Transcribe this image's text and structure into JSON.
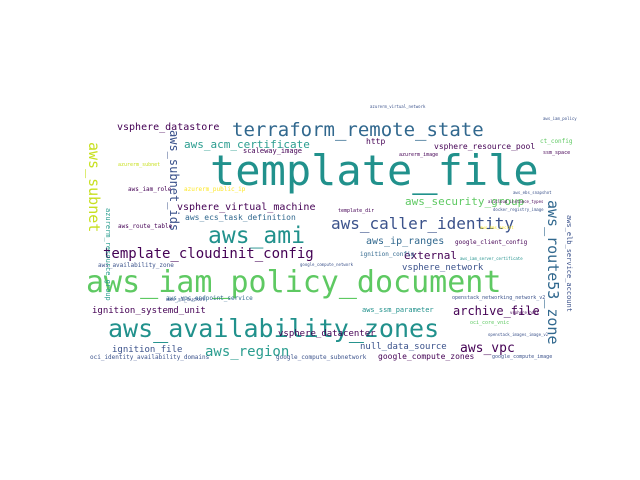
{
  "palette": {
    "dark_purple": "#440154",
    "indigo": "#3b528b",
    "blue": "#31688e",
    "teal": "#21918c",
    "green_teal": "#2a9d8f",
    "green": "#5ec962",
    "yellow": "#fde725",
    "pale_yellow": "#c8e020"
  },
  "words": [
    {
      "id": "template-file",
      "text": "template_file",
      "color": "#21918c"
    },
    {
      "id": "aws-iam-policy-document",
      "text": "aws_iam_policy_document",
      "color": "#5ec962"
    },
    {
      "id": "aws-availability-zones",
      "text": "aws_availability_zones",
      "color": "#21918c"
    },
    {
      "id": "terraform-remote-state",
      "text": "terraform_remote_state",
      "color": "#31688e"
    },
    {
      "id": "aws-ami",
      "text": "aws_ami",
      "color": "#21918c"
    },
    {
      "id": "aws-caller-identity",
      "text": "aws_caller_identity",
      "color": "#3b528b"
    },
    {
      "id": "template-cloudinit-config",
      "text": "template_cloudinit_config",
      "color": "#440154"
    },
    {
      "id": "aws-route53-zone",
      "text": "aws_route53_zone",
      "color": "#31688e"
    },
    {
      "id": "aws-subnet",
      "text": "aws_subnet",
      "color": "#c8e020"
    },
    {
      "id": "aws-subnet-ids",
      "text": "aws_subnet_ids",
      "color": "#3b528b"
    },
    {
      "id": "aws-acm-certificate",
      "text": "aws_acm_certificate",
      "color": "#2a9d8f"
    },
    {
      "id": "vsphere-datastore",
      "text": "vsphere_datastore",
      "color": "#440154"
    },
    {
      "id": "vsphere-virtual-machine",
      "text": "vsphere_virtual_machine",
      "color": "#440154"
    },
    {
      "id": "aws-region",
      "text": "aws_region",
      "color": "#2a9d8f"
    },
    {
      "id": "aws-vpc",
      "text": "aws_vpc",
      "color": "#440154"
    },
    {
      "id": "aws-security-group",
      "text": "aws_security_group",
      "color": "#5ec962"
    },
    {
      "id": "archive-file",
      "text": "archive_file",
      "color": "#440154"
    },
    {
      "id": "external",
      "text": "external",
      "color": "#440154"
    },
    {
      "id": "aws-ip-ranges",
      "text": "aws_ip_ranges",
      "color": "#31688e"
    },
    {
      "id": "vsphere-network",
      "text": "vsphere_network",
      "color": "#3b528b"
    },
    {
      "id": "ignition-systemd-unit",
      "text": "ignition_systemd_unit",
      "color": "#440154"
    },
    {
      "id": "vsphere-datacenter",
      "text": "vsphere_datacenter",
      "color": "#440154"
    },
    {
      "id": "null-data-source",
      "text": "null_data_source",
      "color": "#3b528b"
    },
    {
      "id": "ignition-file",
      "text": "ignition_file",
      "color": "#3b528b"
    },
    {
      "id": "google-compute-zones",
      "text": "google_compute_zones",
      "color": "#440154"
    },
    {
      "id": "aws-ssm-parameter",
      "text": "aws_ssm_parameter",
      "color": "#21918c"
    },
    {
      "id": "vsphere-resource-pool",
      "text": "vsphere_resource_pool",
      "color": "#440154"
    },
    {
      "id": "aws-ecs-task-definition",
      "text": "aws_ecs_task_definition",
      "color": "#31688e"
    },
    {
      "id": "aws-vpc-endpoint-service",
      "text": "aws_vpc_endpoint_service",
      "color": "#31688e"
    },
    {
      "id": "aws-availability-zone",
      "text": "aws_availability_zone",
      "color": "#3b528b"
    },
    {
      "id": "aws-route-table",
      "text": "aws_route_table",
      "color": "#440154"
    },
    {
      "id": "aws-iam-role",
      "text": "aws_iam_role",
      "color": "#440154"
    },
    {
      "id": "scaleway-image",
      "text": "scaleway_image",
      "color": "#440154"
    },
    {
      "id": "http",
      "text": "http",
      "color": "#440154"
    },
    {
      "id": "azurerm-subnet",
      "text": "azurerm_subnet",
      "color": "#c8e020"
    },
    {
      "id": "azurerm-resource-group",
      "text": "azurerm_resource_group",
      "color": "#2a9d8f"
    },
    {
      "id": "aws-elb-service-account",
      "text": "aws_elb_service_account",
      "color": "#3b528b"
    },
    {
      "id": "google-client-config",
      "text": "google_client_config",
      "color": "#440154"
    },
    {
      "id": "ignition-config",
      "text": "ignition_config",
      "color": "#31688e"
    },
    {
      "id": "openstack-networking-network-v2",
      "text": "openstack_networking_network_v2",
      "color": "#3b528b"
    },
    {
      "id": "oci-core-vnic",
      "text": "oci_core_vnic",
      "color": "#5ec962"
    },
    {
      "id": "aws-s3-bucket",
      "text": "aws_s3_bucket",
      "color": "#3b528b"
    },
    {
      "id": "google-compute-subnetwork",
      "text": "google_compute_subnetwork",
      "color": "#3b528b"
    },
    {
      "id": "oci-identity-availability-domains",
      "text": "oci_identity_availability_domains",
      "color": "#3b528b"
    },
    {
      "id": "google-compute-image",
      "text": "google_compute_image",
      "color": "#3b528b"
    },
    {
      "id": "openstack-images-image-v2",
      "text": "openstack_images_image_v2",
      "color": "#3b528b"
    },
    {
      "id": "azurerm-public-ip",
      "text": "azurerm_public_ip",
      "color": "#fde725"
    },
    {
      "id": "azurerm-image",
      "text": "azurerm_image",
      "color": "#440154"
    },
    {
      "id": "aws-iam-policy",
      "text": "aws_iam_policy",
      "color": "#3b528b"
    },
    {
      "id": "ct-config",
      "text": "ct_config",
      "color": "#5ec962"
    },
    {
      "id": "ssm-space",
      "text": "ssm_space",
      "color": "#440154"
    },
    {
      "id": "aws-kms-secret",
      "text": "aws_kms_secret",
      "color": "#fde725"
    },
    {
      "id": "vsphere-host",
      "text": "vsphere_host",
      "color": "#440154"
    },
    {
      "id": "docker-registry-image",
      "text": "docker_registry_image",
      "color": "#3b528b"
    },
    {
      "id": "alicloud-instance-types",
      "text": "alicloud_instance_types",
      "color": "#440154"
    },
    {
      "id": "azurerm-virtual-network",
      "text": "azurerm_virtual_network",
      "color": "#3b528b"
    },
    {
      "id": "google-compute-network",
      "text": "google_compute_network",
      "color": "#3b528b"
    },
    {
      "id": "aws-iam-server-certificate",
      "text": "aws_iam_server_certificate",
      "color": "#21918c"
    },
    {
      "id": "aws-ebs-snapshot",
      "text": "aws_ebs_snapshot",
      "color": "#3b528b"
    },
    {
      "id": "template-dir",
      "text": "template_dir",
      "color": "#440154"
    }
  ]
}
